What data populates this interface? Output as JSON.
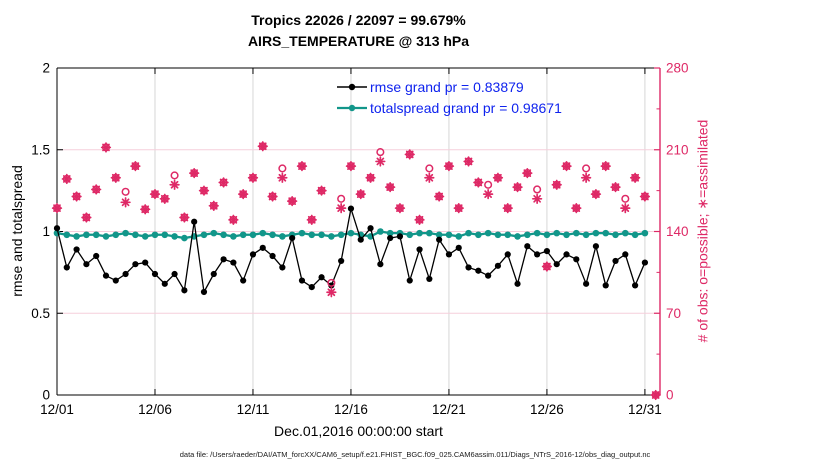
{
  "title": {
    "line1": "Tropics 22026 / 22097 = 99.679%",
    "line2": "AIRS_TEMPERATURE @ 313 hPa"
  },
  "footer": {
    "text": "data file: /Users/raeder/DAI/ATM_forcXX/CAM6_setup/f.e21.FHIST_BGC.f09_025.CAM6assim.011/Diags_NTrS_2016-12/obs_diag_output.nc"
  },
  "chart_data": {
    "type": "line",
    "title": "Tropics 22026 / 22097 = 99.679% — AIRS_TEMPERATURE @ 313 hPa",
    "xlabel": "Dec.01,2016 00:00:00 start",
    "ylabel_left": "rmse and totalspread",
    "ylabel_right": "# of obs: o=possible; ∗=assimilated",
    "xlim_days": [
      1,
      31.77
    ],
    "ylim_left": [
      0,
      2
    ],
    "ylim_right": [
      0,
      280
    ],
    "grid": true,
    "legend_position": "upper right, no box",
    "x_ticks": {
      "days": [
        1,
        6,
        11,
        16,
        21,
        26,
        31
      ],
      "labels": [
        "12/01",
        "12/06",
        "12/11",
        "12/16",
        "12/21",
        "12/26",
        "12/31"
      ]
    },
    "y_ticks_left": {
      "values": [
        0,
        0.5,
        1,
        1.5,
        2
      ],
      "labels": [
        "0",
        "0.5",
        "1",
        "1.5",
        "2"
      ]
    },
    "y_ticks_right": {
      "values": [
        0,
        70,
        140,
        210,
        280
      ],
      "labels": [
        "0",
        "70",
        "140",
        "210",
        "280"
      ],
      "minor": [
        35,
        105,
        175,
        245
      ]
    },
    "legend": [
      {
        "name": "rmse",
        "label": "rmse grand pr = 0.83879",
        "color": "#000000"
      },
      {
        "name": "totalspread",
        "label": "totalspread grand pr = 0.98671",
        "color": "#12968a"
      }
    ],
    "colors": {
      "rmse": "#000000",
      "totalspread": "#12968a",
      "obs": "#de2966",
      "legend_text": "#0f23ee",
      "grid_vertical": "#d6d6d6",
      "grid_horizontal": "#f5cfdc",
      "axis": "#000000"
    },
    "series": {
      "days": [
        1,
        1.5,
        2,
        2.5,
        3,
        3.5,
        4,
        4.5,
        5,
        5.5,
        6,
        6.5,
        7,
        7.5,
        8,
        8.5,
        9,
        9.5,
        10,
        10.5,
        11,
        11.5,
        12,
        12.5,
        13,
        13.5,
        14,
        14.5,
        15,
        15.5,
        16,
        16.5,
        17,
        17.5,
        18,
        18.5,
        19,
        19.5,
        20,
        20.5,
        21,
        21.5,
        22,
        22.5,
        23,
        23.5,
        24,
        24.5,
        25,
        25.5,
        26,
        26.5,
        27,
        27.5,
        28,
        28.5,
        29,
        29.5,
        30,
        30.5,
        31
      ],
      "rmse": [
        1.02,
        0.78,
        0.89,
        0.8,
        0.85,
        0.73,
        0.7,
        0.74,
        0.8,
        0.81,
        0.74,
        0.68,
        0.74,
        0.64,
        1.06,
        0.63,
        0.74,
        0.83,
        0.81,
        0.7,
        0.86,
        0.9,
        0.85,
        0.78,
        0.96,
        0.7,
        0.66,
        0.72,
        0.67,
        0.82,
        1.14,
        0.95,
        1.02,
        0.8,
        0.96,
        0.97,
        0.7,
        0.89,
        0.71,
        0.95,
        0.86,
        0.9,
        0.78,
        0.76,
        0.73,
        0.79,
        0.86,
        0.68,
        0.91,
        0.86,
        0.88,
        0.8,
        0.86,
        0.83,
        0.68,
        0.91,
        0.67,
        0.82,
        0.86,
        0.67,
        0.81
      ],
      "totalspread": [
        0.99,
        0.98,
        0.97,
        0.98,
        0.98,
        0.97,
        0.98,
        0.99,
        0.98,
        0.97,
        0.98,
        0.98,
        0.97,
        0.96,
        0.97,
        0.98,
        0.99,
        0.98,
        0.97,
        0.98,
        0.98,
        0.99,
        0.98,
        0.97,
        0.98,
        0.99,
        0.98,
        0.98,
        0.97,
        0.98,
        0.99,
        0.98,
        0.97,
        1.0,
        0.99,
        0.99,
        0.98,
        0.99,
        0.99,
        0.98,
        0.98,
        0.97,
        0.99,
        0.98,
        0.99,
        0.98,
        0.98,
        0.97,
        0.98,
        0.99,
        0.98,
        0.99,
        0.98,
        0.99,
        0.98,
        0.99,
        0.99,
        0.98,
        0.99,
        0.98,
        0.99
      ],
      "obs_days": [
        1,
        1.5,
        2,
        2.5,
        3,
        3.5,
        4,
        4.5,
        5,
        5.5,
        6,
        6.5,
        7,
        7.5,
        8,
        8.5,
        9,
        9.5,
        10,
        10.5,
        11,
        11.5,
        12,
        12.5,
        13,
        13.5,
        14,
        14.5,
        15,
        15.5,
        16,
        16.5,
        17,
        17.5,
        18,
        18.5,
        19,
        19.5,
        20,
        20.5,
        21,
        21.5,
        22,
        22.5,
        23,
        23.5,
        24,
        24.5,
        25,
        25.5,
        26,
        26.5,
        27,
        27.5,
        28,
        28.5,
        29,
        29.5,
        30,
        30.5,
        31,
        31.55
      ],
      "assimilated": [
        160,
        185,
        170,
        152,
        176,
        212,
        186,
        165,
        196,
        159,
        172,
        168,
        180,
        152,
        190,
        175,
        162,
        182,
        150,
        172,
        186,
        213,
        170,
        186,
        166,
        196,
        150,
        175,
        88,
        160,
        196,
        172,
        186,
        200,
        178,
        160,
        206,
        150,
        186,
        170,
        196,
        160,
        200,
        182,
        172,
        186,
        160,
        178,
        190,
        168,
        110,
        180,
        196,
        160,
        186,
        172,
        196,
        178,
        160,
        186,
        170,
        0
      ],
      "possible": [
        160,
        185,
        170,
        152,
        176,
        212,
        186,
        174,
        196,
        159,
        172,
        168,
        188,
        152,
        190,
        175,
        162,
        182,
        150,
        172,
        186,
        213,
        170,
        194,
        166,
        196,
        150,
        175,
        96,
        168,
        196,
        172,
        186,
        208,
        178,
        160,
        206,
        150,
        194,
        170,
        196,
        160,
        200,
        182,
        180,
        186,
        160,
        178,
        190,
        176,
        110,
        180,
        196,
        160,
        194,
        172,
        196,
        178,
        168,
        186,
        170,
        0
      ]
    }
  }
}
